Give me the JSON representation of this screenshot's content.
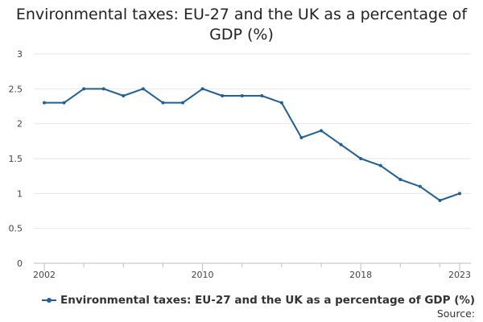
{
  "chart_data": {
    "type": "line",
    "title_line1": "Environmental taxes: EU-27 and the UK as a percentage of",
    "title_line2": "GDP (%)",
    "x": [
      2002,
      2003,
      2004,
      2005,
      2006,
      2007,
      2008,
      2009,
      2010,
      2011,
      2012,
      2013,
      2014,
      2015,
      2016,
      2017,
      2018,
      2019,
      2020,
      2021,
      2022,
      2023
    ],
    "series": [
      {
        "name": "Environmental taxes: EU-27 and the UK as a percentage of GDP (%)",
        "values": [
          2.3,
          2.3,
          2.5,
          2.5,
          2.4,
          2.5,
          2.3,
          2.3,
          2.5,
          2.4,
          2.4,
          2.4,
          2.3,
          1.8,
          1.9,
          1.7,
          1.5,
          1.4,
          1.2,
          1.1,
          0.9,
          1.0
        ]
      }
    ],
    "ylim": [
      0,
      3
    ],
    "yticks": [
      "0",
      "0.5",
      "1",
      "1.5",
      "2",
      "2.5",
      "3"
    ],
    "xtick_labels": [
      "2002",
      "2010",
      "2018",
      "2023"
    ],
    "grid": true,
    "legend_position": "bottom-left",
    "xlabel": "",
    "ylabel": "",
    "color": "#206095"
  },
  "source_label": "Source:"
}
